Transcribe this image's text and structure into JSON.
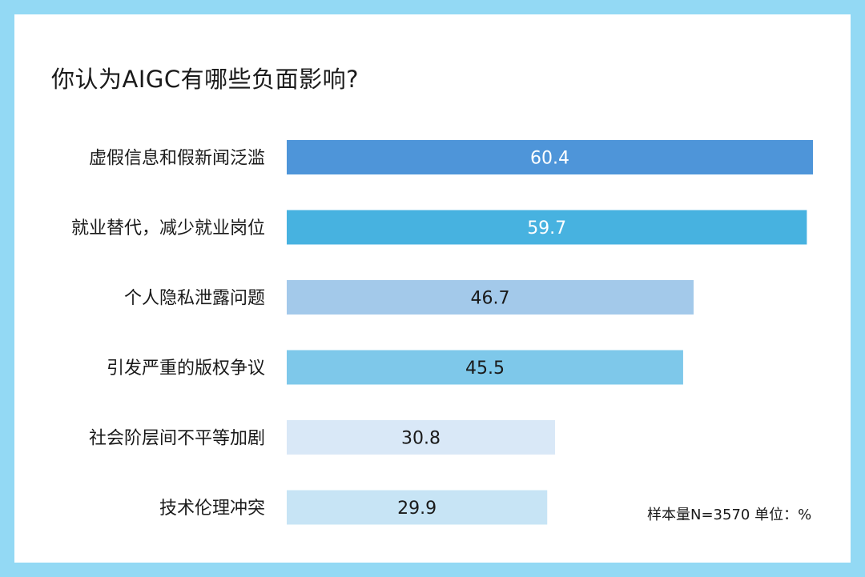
{
  "chart_data": {
    "type": "bar",
    "orientation": "horizontal",
    "title": "你认为AIGC有哪些负面影响?",
    "categories": [
      "虚假信息和假新闻泛滥",
      "就业替代，减少就业岗位",
      "个人隐私泄露问题",
      "引发严重的版权争议",
      "社会阶层间不平等加剧",
      "技术伦理冲突"
    ],
    "values": [
      60.4,
      59.7,
      46.7,
      45.5,
      30.8,
      29.9
    ],
    "value_labels": [
      "60.4",
      "59.7",
      "46.7",
      "45.5",
      "30.8",
      "29.9"
    ],
    "bar_colors": [
      "#4e95d9",
      "#47b2e0",
      "#a3c9ea",
      "#7ec8ea",
      "#d9e8f7",
      "#c7e4f5"
    ],
    "label_colors": [
      "#ffffff",
      "#ffffff",
      "#1a1a1a",
      "#1a1a1a",
      "#1a1a1a",
      "#1a1a1a"
    ],
    "xlim": [
      0,
      60.4
    ],
    "grid": false,
    "legend": "none"
  },
  "footnote": "样本量N=3570   单位：%",
  "colors": {
    "frame": "#93d9f4",
    "card": "#ffffff",
    "text": "#1a1a1a"
  }
}
